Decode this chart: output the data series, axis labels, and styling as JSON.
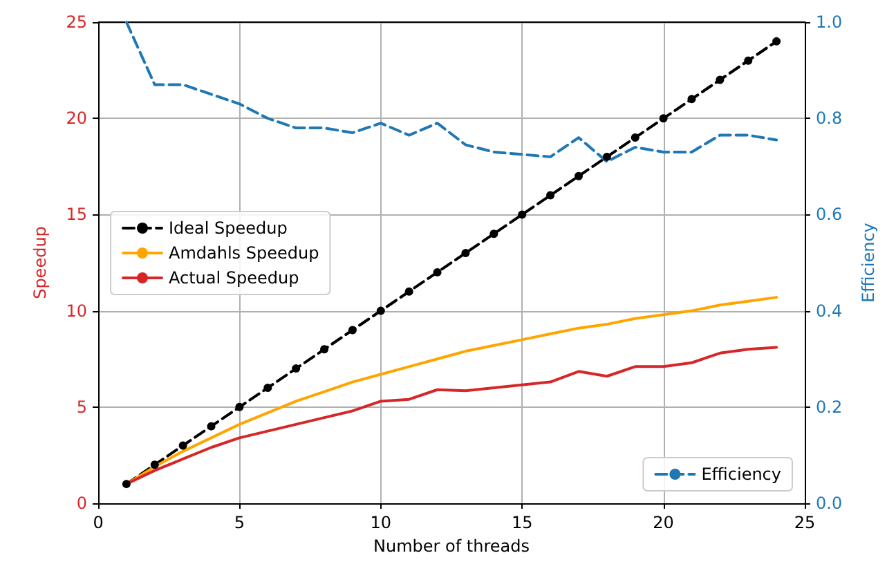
{
  "chart_data": {
    "type": "line",
    "xlabel": "Number of threads",
    "ylabel": "Speedup",
    "y2label": "Efficiency",
    "x": [
      1,
      2,
      3,
      4,
      5,
      6,
      7,
      8,
      9,
      10,
      11,
      12,
      13,
      14,
      15,
      16,
      17,
      18,
      19,
      20,
      21,
      22,
      23,
      24
    ],
    "series": [
      {
        "name": "Ideal Speedup",
        "color": "#000000",
        "marker": "circle",
        "line_style": "dashed",
        "values": [
          1,
          2,
          3,
          4,
          5,
          6,
          7,
          8,
          9,
          10,
          11,
          12,
          13,
          14,
          15,
          16,
          17,
          18,
          19,
          20,
          21,
          22,
          23,
          24
        ]
      },
      {
        "name": "Amdahls Speedup",
        "color": "#ffa500",
        "marker": "none",
        "line_style": "solid",
        "values": [
          1,
          1.9,
          2.7,
          3.4,
          4.1,
          4.7,
          5.3,
          5.8,
          6.3,
          6.7,
          7.1,
          7.5,
          7.9,
          8.2,
          8.5,
          8.8,
          9.1,
          9.3,
          9.6,
          9.8,
          10.0,
          10.3,
          10.5,
          10.7
        ]
      },
      {
        "name": "Actual Speedup",
        "color": "#d62728",
        "marker": "none",
        "line_style": "solid",
        "values": [
          1,
          1.7,
          2.3,
          2.9,
          3.4,
          3.75,
          4.1,
          4.45,
          4.8,
          5.3,
          5.4,
          5.9,
          5.85,
          6.0,
          6.15,
          6.3,
          6.85,
          6.6,
          7.1,
          7.1,
          7.3,
          7.8,
          8.0,
          8.1
        ]
      },
      {
        "name": "Efficiency",
        "color": "#1f77b4",
        "marker": "none",
        "line_style": "dashed",
        "axis": "y2",
        "values": [
          1.0,
          0.87,
          0.87,
          0.85,
          0.83,
          0.8,
          0.78,
          0.78,
          0.77,
          0.79,
          0.765,
          0.79,
          0.745,
          0.73,
          0.725,
          0.72,
          0.76,
          0.71,
          0.74,
          0.73,
          0.73,
          0.765,
          0.765,
          0.755
        ]
      }
    ],
    "xlim": [
      0,
      25
    ],
    "xticks": [
      0,
      5,
      10,
      15,
      20,
      25
    ],
    "ylim": [
      0,
      25
    ],
    "yticks": [
      0,
      5,
      10,
      15,
      20,
      25
    ],
    "y2lim": [
      0,
      1
    ],
    "y2ticks": [
      {
        "value": 0,
        "label": "0.0"
      },
      {
        "value": 0.2,
        "label": "0.2"
      },
      {
        "value": 0.4,
        "label": "0.4"
      },
      {
        "value": 0.6,
        "label": "0.6"
      },
      {
        "value": 0.8,
        "label": "0.8"
      },
      {
        "value": 1,
        "label": "1.0"
      }
    ],
    "grid": true,
    "legend": "center left"
  }
}
